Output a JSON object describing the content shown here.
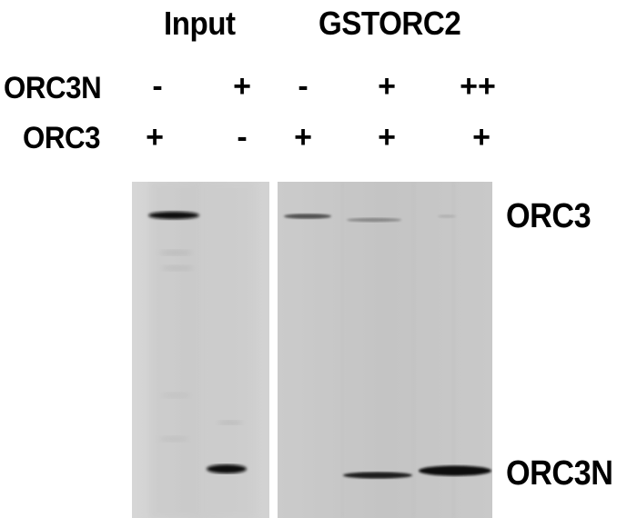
{
  "header": {
    "input_label": "Input",
    "gst_label": "GSTORC2"
  },
  "rows": [
    {
      "name": "ORC3N",
      "cells": [
        "-",
        "+",
        "-",
        "+",
        "++"
      ]
    },
    {
      "name": "ORC3",
      "cells": [
        "+",
        "-",
        "+",
        "+",
        "+"
      ]
    }
  ],
  "band_labels": {
    "top": "ORC3",
    "bottom": "ORC3N"
  },
  "colors": {
    "background": "#ffffff",
    "gel": "#cccccc",
    "band": "#111111",
    "text": "#000000"
  }
}
